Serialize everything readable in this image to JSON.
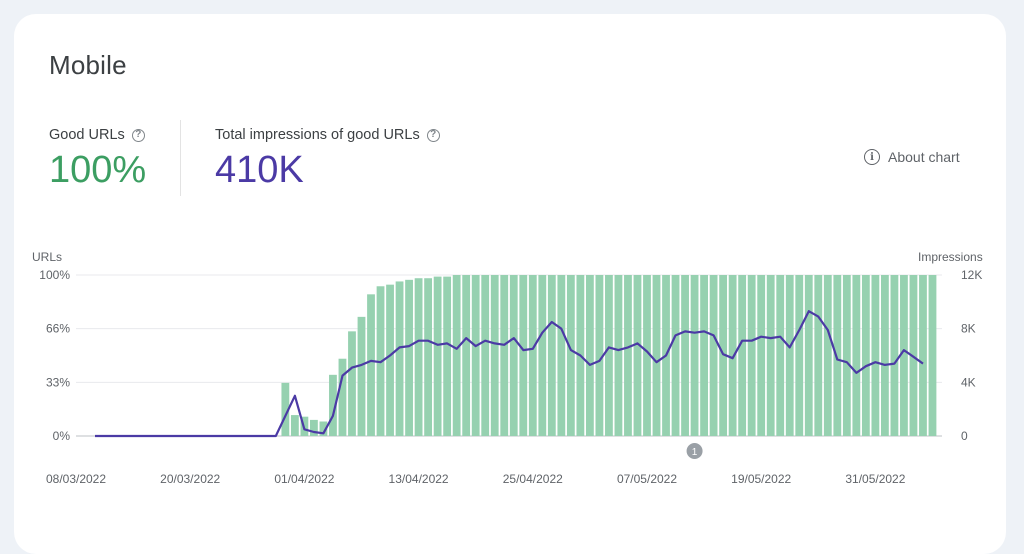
{
  "page": {
    "title": "Mobile"
  },
  "metrics": {
    "good_urls": {
      "label": "Good URLs",
      "value": "100%"
    },
    "impressions": {
      "label": "Total impressions of good URLs",
      "value": "410K"
    },
    "help_glyph": "?"
  },
  "about_chart": {
    "label": "About chart",
    "icon": "info-icon"
  },
  "colors": {
    "bars": "#96d1b0",
    "line": "#4b3aa5",
    "good": "#3c9e62",
    "grid": "#e8eaed"
  },
  "annotation": {
    "label": "1",
    "date": "2022-05-12"
  },
  "chart_data": {
    "type": "bar",
    "ylabel_left": "URLs",
    "ylabel_right": "Impressions",
    "y_left_ticks": [
      "0%",
      "33%",
      "66%",
      "100%"
    ],
    "y_right_ticks": [
      "0",
      "4K",
      "8K",
      "12K"
    ],
    "y_left_range": [
      0,
      100
    ],
    "y_right_range": [
      0,
      12000
    ],
    "x_range": [
      "2022-03-08",
      "2022-06-07"
    ],
    "x_ticks": [
      "08/03/2022",
      "20/03/2022",
      "01/04/2022",
      "13/04/2022",
      "25/04/2022",
      "07/05/2022",
      "19/05/2022",
      "31/05/2022"
    ],
    "series": [
      {
        "name": "URLs",
        "kind": "bar",
        "points": [
          [
            "2022-03-30",
            33
          ],
          [
            "2022-03-31",
            13
          ],
          [
            "2022-04-01",
            12
          ],
          [
            "2022-04-02",
            10
          ],
          [
            "2022-04-03",
            9
          ],
          [
            "2022-04-04",
            38
          ],
          [
            "2022-04-05",
            48
          ],
          [
            "2022-04-06",
            65
          ],
          [
            "2022-04-07",
            74
          ],
          [
            "2022-04-08",
            88
          ],
          [
            "2022-04-09",
            93
          ],
          [
            "2022-04-10",
            94
          ],
          [
            "2022-04-11",
            96
          ],
          [
            "2022-04-12",
            97
          ],
          [
            "2022-04-13",
            98
          ],
          [
            "2022-04-14",
            98
          ],
          [
            "2022-04-15",
            99
          ],
          [
            "2022-04-16",
            99
          ],
          [
            "2022-04-17",
            100
          ],
          [
            "2022-04-18",
            100
          ],
          [
            "2022-04-19",
            100
          ],
          [
            "2022-04-20",
            100
          ],
          [
            "2022-04-21",
            100
          ],
          [
            "2022-04-22",
            100
          ],
          [
            "2022-04-23",
            100
          ],
          [
            "2022-04-24",
            100
          ],
          [
            "2022-04-25",
            100
          ],
          [
            "2022-04-26",
            100
          ],
          [
            "2022-04-27",
            100
          ],
          [
            "2022-04-28",
            100
          ],
          [
            "2022-04-29",
            100
          ],
          [
            "2022-04-30",
            100
          ],
          [
            "2022-05-01",
            100
          ],
          [
            "2022-05-02",
            100
          ],
          [
            "2022-05-03",
            100
          ],
          [
            "2022-05-04",
            100
          ],
          [
            "2022-05-05",
            100
          ],
          [
            "2022-05-06",
            100
          ],
          [
            "2022-05-07",
            100
          ],
          [
            "2022-05-08",
            100
          ],
          [
            "2022-05-09",
            100
          ],
          [
            "2022-05-10",
            100
          ],
          [
            "2022-05-11",
            100
          ],
          [
            "2022-05-12",
            100
          ],
          [
            "2022-05-13",
            100
          ],
          [
            "2022-05-14",
            100
          ],
          [
            "2022-05-15",
            100
          ],
          [
            "2022-05-16",
            100
          ],
          [
            "2022-05-17",
            100
          ],
          [
            "2022-05-18",
            100
          ],
          [
            "2022-05-19",
            100
          ],
          [
            "2022-05-20",
            100
          ],
          [
            "2022-05-21",
            100
          ],
          [
            "2022-05-22",
            100
          ],
          [
            "2022-05-23",
            100
          ],
          [
            "2022-05-24",
            100
          ],
          [
            "2022-05-25",
            100
          ],
          [
            "2022-05-26",
            100
          ],
          [
            "2022-05-27",
            100
          ],
          [
            "2022-05-28",
            100
          ],
          [
            "2022-05-29",
            100
          ],
          [
            "2022-05-30",
            100
          ],
          [
            "2022-05-31",
            100
          ],
          [
            "2022-06-01",
            100
          ],
          [
            "2022-06-02",
            100
          ],
          [
            "2022-06-03",
            100
          ],
          [
            "2022-06-04",
            100
          ],
          [
            "2022-06-05",
            100
          ],
          [
            "2022-06-06",
            100
          ]
        ]
      },
      {
        "name": "Impressions",
        "kind": "line",
        "points": [
          [
            "2022-03-10",
            0
          ],
          [
            "2022-03-15",
            0
          ],
          [
            "2022-03-20",
            0
          ],
          [
            "2022-03-25",
            0
          ],
          [
            "2022-03-29",
            0
          ],
          [
            "2022-03-31",
            3000
          ],
          [
            "2022-04-01",
            500
          ],
          [
            "2022-04-02",
            300
          ],
          [
            "2022-04-03",
            200
          ],
          [
            "2022-04-04",
            1500
          ],
          [
            "2022-04-05",
            4500
          ],
          [
            "2022-04-06",
            5100
          ],
          [
            "2022-04-07",
            5300
          ],
          [
            "2022-04-08",
            5600
          ],
          [
            "2022-04-09",
            5500
          ],
          [
            "2022-04-10",
            6000
          ],
          [
            "2022-04-11",
            6600
          ],
          [
            "2022-04-12",
            6700
          ],
          [
            "2022-04-13",
            7100
          ],
          [
            "2022-04-14",
            7100
          ],
          [
            "2022-04-15",
            6800
          ],
          [
            "2022-04-16",
            6900
          ],
          [
            "2022-04-17",
            6500
          ],
          [
            "2022-04-18",
            7300
          ],
          [
            "2022-04-19",
            6700
          ],
          [
            "2022-04-20",
            7100
          ],
          [
            "2022-04-21",
            6900
          ],
          [
            "2022-04-22",
            6800
          ],
          [
            "2022-04-23",
            7300
          ],
          [
            "2022-04-24",
            6400
          ],
          [
            "2022-04-25",
            6500
          ],
          [
            "2022-04-26",
            7700
          ],
          [
            "2022-04-27",
            8500
          ],
          [
            "2022-04-28",
            8000
          ],
          [
            "2022-04-29",
            6400
          ],
          [
            "2022-04-30",
            6000
          ],
          [
            "2022-05-01",
            5300
          ],
          [
            "2022-05-02",
            5600
          ],
          [
            "2022-05-03",
            6600
          ],
          [
            "2022-05-04",
            6400
          ],
          [
            "2022-05-05",
            6600
          ],
          [
            "2022-05-06",
            6900
          ],
          [
            "2022-05-07",
            6300
          ],
          [
            "2022-05-08",
            5500
          ],
          [
            "2022-05-09",
            6000
          ],
          [
            "2022-05-10",
            7500
          ],
          [
            "2022-05-11",
            7800
          ],
          [
            "2022-05-12",
            7700
          ],
          [
            "2022-05-13",
            7800
          ],
          [
            "2022-05-14",
            7500
          ],
          [
            "2022-05-15",
            6100
          ],
          [
            "2022-05-16",
            5800
          ],
          [
            "2022-05-17",
            7100
          ],
          [
            "2022-05-18",
            7100
          ],
          [
            "2022-05-19",
            7400
          ],
          [
            "2022-05-20",
            7300
          ],
          [
            "2022-05-21",
            7400
          ],
          [
            "2022-05-22",
            6600
          ],
          [
            "2022-05-23",
            7900
          ],
          [
            "2022-05-24",
            9300
          ],
          [
            "2022-05-25",
            8900
          ],
          [
            "2022-05-26",
            7900
          ],
          [
            "2022-05-27",
            5700
          ],
          [
            "2022-05-28",
            5500
          ],
          [
            "2022-05-29",
            4700
          ],
          [
            "2022-05-30",
            5200
          ],
          [
            "2022-05-31",
            5500
          ],
          [
            "2022-06-01",
            5300
          ],
          [
            "2022-06-02",
            5400
          ],
          [
            "2022-06-03",
            6400
          ],
          [
            "2022-06-04",
            5900
          ],
          [
            "2022-06-05",
            5400
          ]
        ]
      }
    ]
  }
}
